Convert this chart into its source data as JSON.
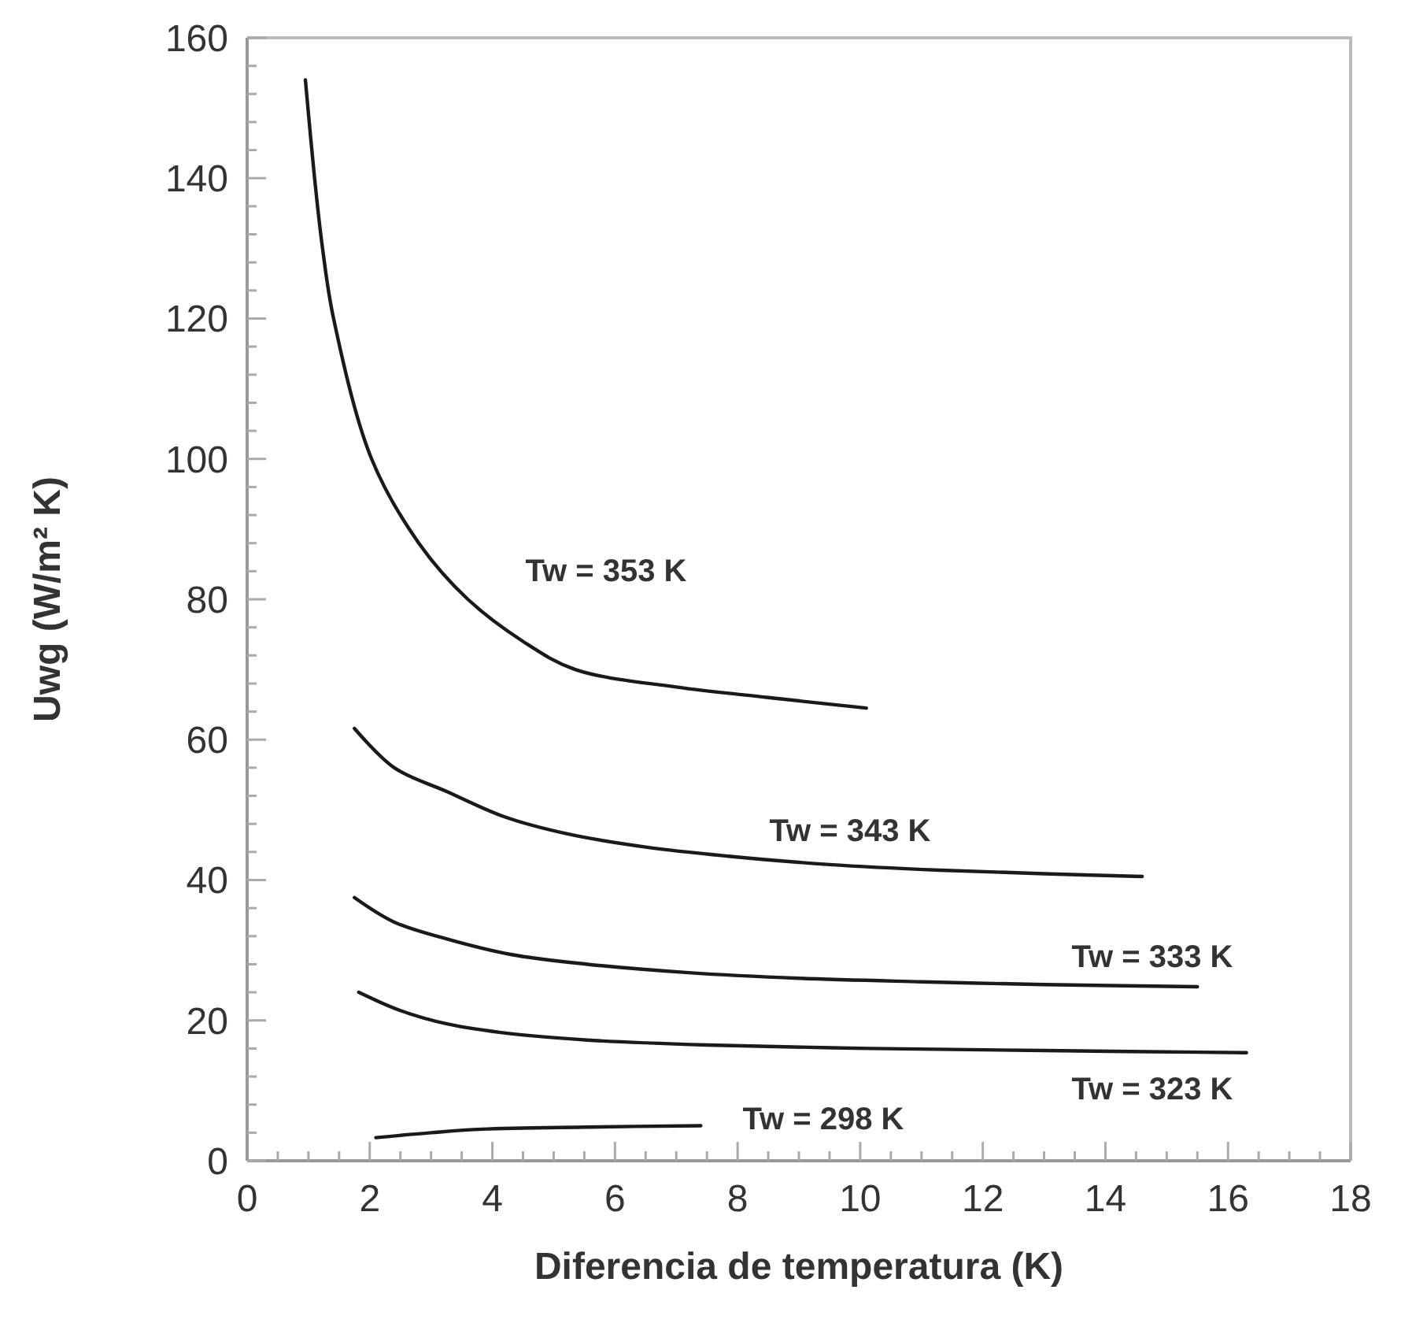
{
  "chart_data": {
    "type": "line",
    "xlabel": "Diferencia de temperatura (K)",
    "ylabel": "Uwg (W/m² K)",
    "xlim": [
      0,
      18
    ],
    "ylim": [
      0,
      160
    ],
    "xticks": [
      0,
      {
        "value": 0.5,
        "label": null
      },
      {
        "value": 1,
        "label": null
      },
      {
        "value": 1.5,
        "label": null
      },
      2,
      {
        "value": 2.5,
        "label": null
      },
      {
        "value": 3,
        "label": null
      },
      {
        "value": 3.5,
        "label": null
      },
      4,
      {
        "value": 4.5,
        "label": null
      },
      {
        "value": 5,
        "label": null
      },
      {
        "value": 5.5,
        "label": null
      },
      6,
      {
        "value": 6.5,
        "label": null
      },
      {
        "value": 7,
        "label": null
      },
      {
        "value": 7.5,
        "label": null
      },
      8,
      {
        "value": 8.5,
        "label": null
      },
      {
        "value": 9,
        "label": null
      },
      {
        "value": 9.5,
        "label": null
      },
      10,
      {
        "value": 10.5,
        "label": null
      },
      {
        "value": 11,
        "label": null
      },
      {
        "value": 11.5,
        "label": null
      },
      12,
      {
        "value": 12.5,
        "label": null
      },
      {
        "value": 13,
        "label": null
      },
      {
        "value": 13.5,
        "label": null
      },
      14,
      {
        "value": 14.5,
        "label": null
      },
      {
        "value": 15,
        "label": null
      },
      {
        "value": 15.5,
        "label": null
      },
      16,
      {
        "value": 16.5,
        "label": null
      },
      {
        "value": 17,
        "label": null
      },
      {
        "value": 17.5,
        "label": null
      },
      18
    ],
    "yticks": [
      0,
      {
        "value": 4,
        "label": null
      },
      {
        "value": 8,
        "label": null
      },
      {
        "value": 12,
        "label": null
      },
      {
        "value": 16,
        "label": null
      },
      20,
      {
        "value": 24,
        "label": null
      },
      {
        "value": 28,
        "label": null
      },
      {
        "value": 32,
        "label": null
      },
      {
        "value": 36,
        "label": null
      },
      40,
      {
        "value": 44,
        "label": null
      },
      {
        "value": 48,
        "label": null
      },
      {
        "value": 52,
        "label": null
      },
      {
        "value": 56,
        "label": null
      },
      60,
      {
        "value": 64,
        "label": null
      },
      {
        "value": 68,
        "label": null
      },
      {
        "value": 72,
        "label": null
      },
      {
        "value": 76,
        "label": null
      },
      80,
      {
        "value": 84,
        "label": null
      },
      {
        "value": 88,
        "label": null
      },
      {
        "value": 92,
        "label": null
      },
      {
        "value": 96,
        "label": null
      },
      100,
      {
        "value": 104,
        "label": null
      },
      {
        "value": 108,
        "label": null
      },
      {
        "value": 112,
        "label": null
      },
      {
        "value": 116,
        "label": null
      },
      120,
      {
        "value": 124,
        "label": null
      },
      {
        "value": 128,
        "label": null
      },
      {
        "value": 132,
        "label": null
      },
      {
        "value": 136,
        "label": null
      },
      140,
      {
        "value": 144,
        "label": null
      },
      {
        "value": 148,
        "label": null
      },
      {
        "value": 152,
        "label": null
      },
      {
        "value": 156,
        "label": null
      },
      160
    ],
    "grid": false,
    "marker": "none",
    "line_style": "solid",
    "series": [
      {
        "name": "Tw = 353 K",
        "color": "#1a1a1a",
        "x": [
          0.95,
          1.1,
          1.23,
          1.41,
          2.03,
          2.8,
          3.6,
          4.5,
          5.35,
          7,
          8.5,
          10.1
        ],
        "values": [
          154,
          140,
          130,
          120,
          100,
          88,
          80,
          74,
          70,
          67.5,
          66,
          64.5
        ]
      },
      {
        "name": "Tw = 343 K",
        "color": "#1a1a1a",
        "x": [
          1.75,
          2.4,
          3.26,
          4.2,
          5.21,
          6.5,
          7.85,
          9.5,
          11.3,
          13,
          14.6
        ],
        "values": [
          61.6,
          56,
          52.6,
          49,
          46.6,
          44.7,
          43.4,
          42.2,
          41.4,
          40.9,
          40.5
        ]
      },
      {
        "name": "Tw = 333 K",
        "color": "#1a1a1a",
        "x": [
          1.75,
          2.4,
          3.26,
          4.3,
          5.55,
          7.2,
          9,
          11,
          13,
          15.5
        ],
        "values": [
          37.5,
          34,
          31.6,
          29.4,
          28,
          26.8,
          26,
          25.5,
          25.1,
          24.8
        ]
      },
      {
        "name": "Tw = 323 K",
        "color": "#1a1a1a",
        "x": [
          1.82,
          2.5,
          3.26,
          4.3,
          5.55,
          7.5,
          10.15,
          13,
          16.3
        ],
        "values": [
          24,
          21.4,
          19.5,
          18.1,
          17.2,
          16.5,
          16,
          15.7,
          15.4
        ]
      },
      {
        "name": "Tw = 298 K",
        "color": "#1a1a1a",
        "x": [
          2.1,
          3,
          3.83,
          5.55,
          7.4
        ],
        "values": [
          3.3,
          4,
          4.5,
          4.8,
          5
        ]
      }
    ]
  }
}
